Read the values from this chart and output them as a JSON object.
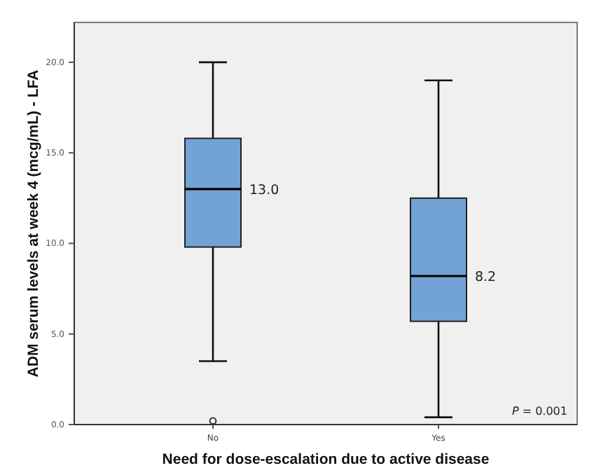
{
  "chart_data": {
    "type": "box",
    "categories": [
      "No",
      "Yes"
    ],
    "boxes": [
      {
        "low": 3.5,
        "q1": 9.8,
        "median": 13.0,
        "q3": 15.8,
        "high": 20.0,
        "outliers": [
          0.2
        ]
      },
      {
        "low": 0.4,
        "q1": 5.7,
        "median": 8.2,
        "q3": 12.5,
        "high": 19.0
      }
    ],
    "color": "#73a2d6",
    "ylim": [
      0,
      22.2
    ],
    "yticks": [
      {
        "value": 0,
        "label": "0.0"
      },
      {
        "value": 5,
        "label": "5.0"
      },
      {
        "value": 10,
        "label": "10.0"
      },
      {
        "value": 15,
        "label": "15.0"
      },
      {
        "value": 20,
        "label": "20.0"
      }
    ],
    "xlabel": "Need for dose-escalation due to active disease",
    "ylabel": "ADM serum levels at week 4 (mcg/mL) - LFA",
    "annotations": [
      {
        "text": "13.0",
        "x": "No",
        "y": 13.0
      },
      {
        "text": "8.2",
        "x": "Yes",
        "y": 8.2
      },
      "P = 0.001"
    ]
  }
}
